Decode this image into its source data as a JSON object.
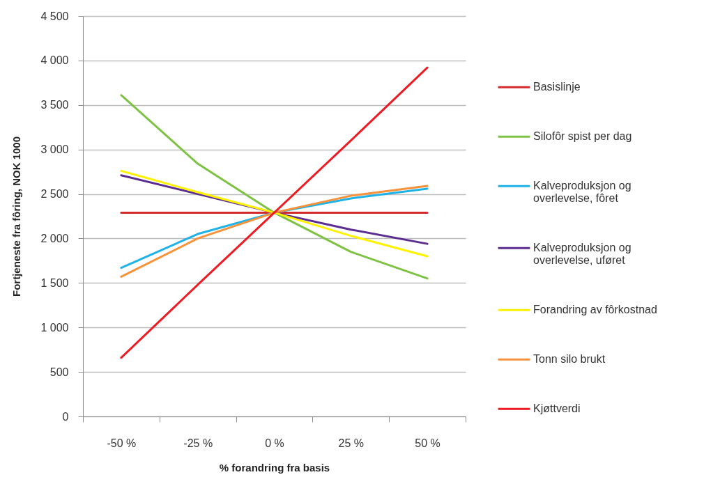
{
  "chart_data": {
    "type": "line",
    "xlabel": "% forandring fra basis",
    "ylabel": "Fortjeneste fra fôring, NOK 1000",
    "categories": [
      "-50 %",
      "-25 %",
      "0 %",
      "25 %",
      "50 %"
    ],
    "series": [
      {
        "name": "Basislinje",
        "color": "#d42a2d",
        "values": [
          2290,
          2290,
          2290,
          2290,
          2290
        ]
      },
      {
        "name": "Silofôr spist per dag",
        "color": "#7dc242",
        "values": [
          3610,
          2840,
          2290,
          1850,
          1550
        ]
      },
      {
        "name": "Kalveproduksjon og overlevelse, fôret",
        "color": "#1eb2e8",
        "values": [
          1670,
          2050,
          2290,
          2450,
          2560
        ]
      },
      {
        "name": "Kalveproduksjon og overlevelse, uføret",
        "color": "#5c2d91",
        "values": [
          2710,
          2500,
          2290,
          2100,
          1940
        ]
      },
      {
        "name": "Forandring av fôrkostnad",
        "color": "#fff200",
        "values": [
          2760,
          2520,
          2290,
          2030,
          1800
        ]
      },
      {
        "name": "Tonn silo brukt",
        "color": "#f7923a",
        "values": [
          1570,
          2000,
          2290,
          2480,
          2590
        ]
      },
      {
        "name": "Kjøttverdi",
        "color": "#ed1c24",
        "values": [
          660,
          1480,
          2290,
          3100,
          3920
        ]
      }
    ],
    "ylim": [
      0,
      4500
    ],
    "yticks": [
      0,
      500,
      {
        "value": 1000,
        "label": "1 000"
      },
      {
        "value": 1500,
        "label": "1 500"
      },
      {
        "value": 2000,
        "label": "2 000"
      },
      {
        "value": 2500,
        "label": "2 500"
      },
      {
        "value": 3000,
        "label": "3 000"
      },
      {
        "value": 3500,
        "label": "3 500"
      },
      {
        "value": 4000,
        "label": "4 000"
      },
      {
        "value": 4500,
        "label": "4 500"
      }
    ],
    "grid": "y",
    "legend": "right",
    "line_style": "solid"
  }
}
